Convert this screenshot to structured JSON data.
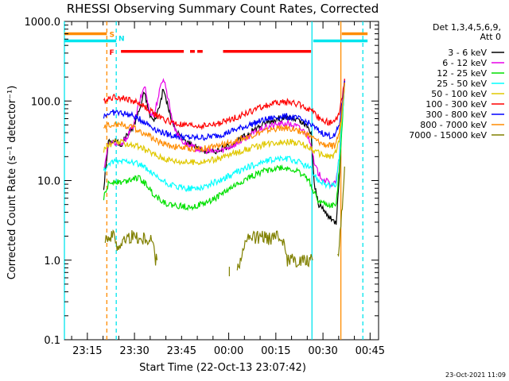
{
  "chart_data": {
    "type": "line",
    "title": "RHESSI Observing Summary Count Rates, Corrected",
    "xlabel": "Start Time (22-Oct-13 23:07:42)",
    "ylabel": "Corrected Count Rate (s⁻¹ detector⁻¹)",
    "y_scale": "log",
    "ylim": [
      0.1,
      1000.0
    ],
    "y_ticks": [
      "0.1",
      "1.0",
      "10.0",
      "100.0",
      "1000.0"
    ],
    "x_ticks": [
      "23:15",
      "23:30",
      "23:45",
      "00:00",
      "00:15",
      "00:30",
      "00:45"
    ],
    "x_tick_minutes": [
      7.3,
      22.3,
      37.3,
      52.3,
      67.3,
      82.3,
      97.3
    ],
    "xlim_minutes": [
      0,
      100
    ],
    "x_unit": "minutes after 22-Oct-13 23:07:42",
    "legend_header": [
      "Det 1,3,4,5,6,9,",
      "Att 0"
    ],
    "legend_position": "right",
    "timestamp": "23-Oct-2021 11:09",
    "flags": [
      {
        "label": "S",
        "color": "#ff8c00",
        "level": 700
      },
      {
        "label": "N",
        "color": "#00e5ee",
        "level": 570
      },
      {
        "label": "F",
        "color": "#ff0000",
        "level": 420
      }
    ],
    "series": [
      {
        "name": "3 - 6 keV",
        "color": "#000000",
        "points": [
          [
            12.5,
            8
          ],
          [
            14,
            30
          ],
          [
            16,
            32
          ],
          [
            18,
            28
          ],
          [
            20,
            38
          ],
          [
            22,
            48
          ],
          [
            24,
            80
          ],
          [
            25.5,
            130
          ],
          [
            27,
            70
          ],
          [
            28.5,
            55
          ],
          [
            30,
            80
          ],
          [
            31.5,
            140
          ],
          [
            33,
            85
          ],
          [
            34.5,
            50
          ],
          [
            36,
            40
          ],
          [
            38,
            32
          ],
          [
            41,
            28
          ],
          [
            44,
            24
          ],
          [
            47,
            23
          ],
          [
            50,
            25
          ],
          [
            53,
            28
          ],
          [
            56,
            33
          ],
          [
            59,
            40
          ],
          [
            62,
            48
          ],
          [
            65,
            55
          ],
          [
            68,
            60
          ],
          [
            71,
            62
          ],
          [
            74,
            58
          ],
          [
            77,
            48
          ],
          [
            78.5,
            40
          ],
          [
            79.5,
            9
          ],
          [
            81,
            5
          ],
          [
            83,
            4
          ],
          [
            85,
            3.2
          ],
          [
            86.5,
            3
          ],
          [
            87.5,
            12
          ],
          [
            88.5,
            70
          ],
          [
            89.2,
            180
          ]
        ]
      },
      {
        "name": "6 - 12 keV",
        "color": "#e800e8",
        "points": [
          [
            12.5,
            14
          ],
          [
            14,
            28
          ],
          [
            16,
            30
          ],
          [
            18,
            27
          ],
          [
            20,
            36
          ],
          [
            22,
            50
          ],
          [
            24,
            100
          ],
          [
            25.5,
            160
          ],
          [
            27,
            75
          ],
          [
            28.5,
            65
          ],
          [
            30,
            120
          ],
          [
            31.5,
            200
          ],
          [
            33,
            110
          ],
          [
            34.5,
            55
          ],
          [
            36,
            38
          ],
          [
            38,
            30
          ],
          [
            41,
            26
          ],
          [
            44,
            24
          ],
          [
            47,
            23
          ],
          [
            50,
            24
          ],
          [
            53,
            27
          ],
          [
            56,
            31
          ],
          [
            59,
            37
          ],
          [
            62,
            43
          ],
          [
            65,
            48
          ],
          [
            68,
            51
          ],
          [
            71,
            52
          ],
          [
            74,
            48
          ],
          [
            77,
            40
          ],
          [
            78.5,
            30
          ],
          [
            79.5,
            16
          ],
          [
            81,
            12
          ],
          [
            83,
            10
          ],
          [
            85,
            9
          ],
          [
            86.5,
            9.5
          ],
          [
            87.5,
            20
          ],
          [
            88.5,
            80
          ],
          [
            89.2,
            190
          ]
        ]
      },
      {
        "name": "12 - 25 keV",
        "color": "#00e000",
        "points": [
          [
            12.5,
            6
          ],
          [
            14,
            9
          ],
          [
            16,
            10
          ],
          [
            18,
            9.5
          ],
          [
            20,
            10
          ],
          [
            22,
            11
          ],
          [
            24,
            10.5
          ],
          [
            26,
            9
          ],
          [
            28,
            7
          ],
          [
            30,
            6
          ],
          [
            33,
            5
          ],
          [
            36,
            4.8
          ],
          [
            39,
            4.7
          ],
          [
            42,
            4.8
          ],
          [
            45,
            5.2
          ],
          [
            48,
            6
          ],
          [
            51,
            7.2
          ],
          [
            54,
            8.5
          ],
          [
            57,
            10
          ],
          [
            60,
            11.5
          ],
          [
            63,
            13
          ],
          [
            66,
            14
          ],
          [
            69,
            14.5
          ],
          [
            72,
            14
          ],
          [
            75,
            12.5
          ],
          [
            78,
            10
          ],
          [
            79.5,
            7
          ],
          [
            81,
            5.5
          ],
          [
            83,
            5
          ],
          [
            85,
            4.8
          ],
          [
            86.5,
            5
          ],
          [
            87.5,
            14
          ],
          [
            88.5,
            60
          ],
          [
            89.2,
            170
          ]
        ]
      },
      {
        "name": "25 - 50 keV",
        "color": "#00ffff",
        "points": [
          [
            12.5,
            13
          ],
          [
            14,
            16
          ],
          [
            16,
            17
          ],
          [
            18,
            17.5
          ],
          [
            20,
            18
          ],
          [
            22,
            17
          ],
          [
            24,
            16
          ],
          [
            26,
            14
          ],
          [
            28,
            12
          ],
          [
            30,
            10.5
          ],
          [
            33,
            9
          ],
          [
            36,
            8.2
          ],
          [
            39,
            8
          ],
          [
            42,
            8
          ],
          [
            45,
            8.5
          ],
          [
            48,
            9.5
          ],
          [
            51,
            10.8
          ],
          [
            54,
            12.2
          ],
          [
            57,
            14
          ],
          [
            60,
            15.5
          ],
          [
            63,
            17
          ],
          [
            66,
            18.2
          ],
          [
            69,
            19
          ],
          [
            72,
            18.5
          ],
          [
            75,
            17
          ],
          [
            78,
            14.5
          ],
          [
            79.5,
            12
          ],
          [
            81,
            10
          ],
          [
            83,
            9
          ],
          [
            85,
            8.5
          ],
          [
            86.5,
            9
          ],
          [
            87.5,
            20
          ],
          [
            88.5,
            70
          ],
          [
            89.2,
            170
          ]
        ]
      },
      {
        "name": "50 - 100 keV",
        "color": "#e0c800",
        "points": [
          [
            12.5,
            24
          ],
          [
            14,
            28
          ],
          [
            16,
            30
          ],
          [
            18,
            30
          ],
          [
            20,
            29
          ],
          [
            22,
            28
          ],
          [
            24,
            26
          ],
          [
            26,
            24
          ],
          [
            28,
            22
          ],
          [
            30,
            20
          ],
          [
            33,
            18.5
          ],
          [
            36,
            17.5
          ],
          [
            39,
            17
          ],
          [
            42,
            17
          ],
          [
            45,
            17.5
          ],
          [
            48,
            18.5
          ],
          [
            51,
            20
          ],
          [
            54,
            22
          ],
          [
            57,
            24
          ],
          [
            60,
            26
          ],
          [
            63,
            28
          ],
          [
            66,
            30
          ],
          [
            69,
            31
          ],
          [
            72,
            30.5
          ],
          [
            75,
            29
          ],
          [
            78,
            26
          ],
          [
            80,
            23
          ],
          [
            82,
            21
          ],
          [
            84,
            20
          ],
          [
            86,
            20.5
          ],
          [
            87.5,
            32
          ],
          [
            88.5,
            80
          ],
          [
            89.2,
            170
          ]
        ]
      },
      {
        "name": "100 - 300 keV",
        "color": "#ff0000",
        "points": [
          [
            12.5,
            100
          ],
          [
            14,
            108
          ],
          [
            16,
            112
          ],
          [
            18,
            110
          ],
          [
            20,
            105
          ],
          [
            22,
            100
          ],
          [
            24,
            92
          ],
          [
            26,
            82
          ],
          [
            28,
            72
          ],
          [
            30,
            63
          ],
          [
            33,
            56
          ],
          [
            36,
            51
          ],
          [
            39,
            49
          ],
          [
            42,
            48.5
          ],
          [
            45,
            49
          ],
          [
            48,
            51
          ],
          [
            51,
            55
          ],
          [
            54,
            61
          ],
          [
            57,
            68
          ],
          [
            60,
            76
          ],
          [
            63,
            85
          ],
          [
            66,
            92
          ],
          [
            69,
            97
          ],
          [
            72,
            96
          ],
          [
            75,
            90
          ],
          [
            78,
            78
          ],
          [
            80,
            66
          ],
          [
            82,
            58
          ],
          [
            84,
            54
          ],
          [
            86,
            53
          ],
          [
            87.5,
            70
          ],
          [
            88.5,
            120
          ],
          [
            89.2,
            190
          ]
        ]
      },
      {
        "name": "300 - 800 keV",
        "color": "#0000ff",
        "points": [
          [
            12.5,
            65
          ],
          [
            14,
            70
          ],
          [
            16,
            72
          ],
          [
            18,
            71
          ],
          [
            20,
            68
          ],
          [
            22,
            64
          ],
          [
            24,
            59
          ],
          [
            26,
            53
          ],
          [
            28,
            47
          ],
          [
            30,
            42
          ],
          [
            33,
            38
          ],
          [
            36,
            36
          ],
          [
            39,
            35
          ],
          [
            42,
            34.5
          ],
          [
            45,
            35
          ],
          [
            48,
            36.5
          ],
          [
            51,
            39
          ],
          [
            54,
            43
          ],
          [
            57,
            47
          ],
          [
            60,
            52
          ],
          [
            63,
            57
          ],
          [
            66,
            61
          ],
          [
            69,
            64
          ],
          [
            72,
            63
          ],
          [
            75,
            59
          ],
          [
            78,
            52
          ],
          [
            80,
            45
          ],
          [
            82,
            40
          ],
          [
            84,
            37
          ],
          [
            86,
            36
          ],
          [
            87.5,
            50
          ],
          [
            88.5,
            100
          ],
          [
            89.2,
            180
          ]
        ]
      },
      {
        "name": "800 - 7000 keV",
        "color": "#ff8c00",
        "points": [
          [
            12.5,
            45
          ],
          [
            14,
            50
          ],
          [
            16,
            52
          ],
          [
            18,
            51
          ],
          [
            20,
            49
          ],
          [
            22,
            46
          ],
          [
            24,
            42
          ],
          [
            26,
            38
          ],
          [
            28,
            34
          ],
          [
            30,
            31
          ],
          [
            33,
            28
          ],
          [
            36,
            26.5
          ],
          [
            39,
            25.5
          ],
          [
            42,
            25
          ],
          [
            45,
            25.5
          ],
          [
            48,
            26.5
          ],
          [
            51,
            28.5
          ],
          [
            54,
            31
          ],
          [
            57,
            34
          ],
          [
            60,
            37.5
          ],
          [
            63,
            41
          ],
          [
            66,
            44
          ],
          [
            69,
            46
          ],
          [
            72,
            45
          ],
          [
            75,
            42
          ],
          [
            78,
            37
          ],
          [
            80,
            32
          ],
          [
            82,
            29
          ],
          [
            84,
            27.5
          ],
          [
            86,
            27
          ],
          [
            87.5,
            40
          ],
          [
            88.5,
            90
          ],
          [
            89.2,
            170
          ]
        ]
      },
      {
        "name": "7000 - 15000 keV",
        "color": "#808000",
        "segments": [
          [
            [
              13,
              2
            ],
            [
              16,
              2
            ],
            [
              17,
              1.5
            ],
            [
              20,
              1.9
            ],
            [
              23,
              2
            ],
            [
              24,
              1.8
            ],
            [
              26,
              1.9
            ],
            [
              28,
              1.8
            ],
            [
              29,
              1.0
            ],
            [
              29.5,
              1.0
            ]
          ],
          [
            [
              52.5,
              0.72
            ],
            [
              52.6,
              0.72
            ]
          ],
          [
            [
              55,
              0.8
            ],
            [
              56,
              1.0
            ],
            [
              57,
              1.5
            ],
            [
              59,
              1.9
            ],
            [
              62,
              1.9
            ],
            [
              65,
              1.9
            ],
            [
              68,
              1.9
            ],
            [
              70,
              1.8
            ],
            [
              71,
              1.0
            ],
            [
              73,
              1.0
            ],
            [
              75,
              1.0
            ],
            [
              77,
              1.0
            ],
            [
              79,
              1.0
            ]
          ],
          [
            [
              87,
              1.0
            ],
            [
              88,
              3
            ],
            [
              88.7,
              7
            ],
            [
              89.2,
              15
            ]
          ]
        ]
      }
    ]
  }
}
